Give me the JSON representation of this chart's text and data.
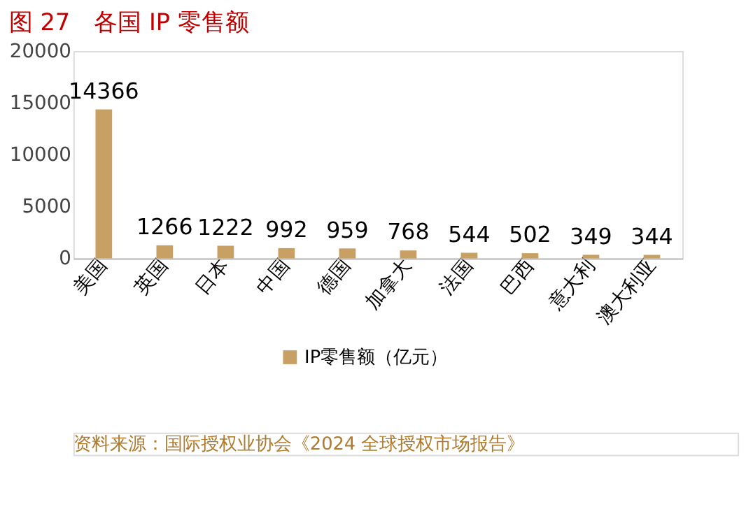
{
  "chart_data": {
    "type": "bar",
    "title": "图 27　各国 IP 零售额",
    "categories": [
      "美国",
      "英国",
      "日本",
      "中国",
      "德国",
      "加拿大",
      "法国",
      "巴西",
      "意大利",
      "澳大利亚"
    ],
    "series": [
      {
        "name": "IP零售额（亿元）",
        "color": "#c9a063",
        "values": [
          14366,
          1266,
          1222,
          992,
          959,
          768,
          544,
          502,
          349,
          344
        ]
      }
    ],
    "ylim": [
      0,
      20000
    ],
    "yticks": [
      0,
      5000,
      10000,
      15000,
      20000
    ],
    "grid": false,
    "legend": "bottom",
    "data_labels": true,
    "annotations": [
      "资料来源：国际授权业协会《2024 全球授权市场报告》"
    ]
  }
}
